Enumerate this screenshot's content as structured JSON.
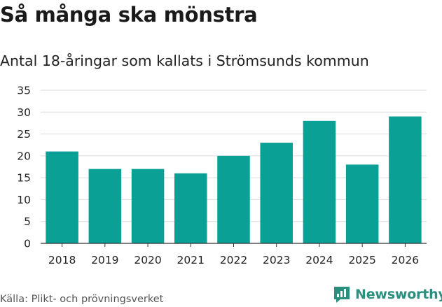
{
  "header": {
    "title": "Så många ska mönstra",
    "subtitle": "Antal 18-åringar som kallats i Strömsunds kommun"
  },
  "footer": {
    "source": "Källa: Plikt- och prövningsverket",
    "brand": "Newsworthy",
    "brand_icon": "newsworthy-logo-icon"
  },
  "colors": {
    "bar": "#0aa095",
    "grid": "#dcdcdc",
    "axis": "#333333",
    "brand": "#2a8f7f"
  },
  "chart_data": {
    "type": "bar",
    "title": "Så många ska mönstra",
    "subtitle": "Antal 18-åringar som kallats i Strömsunds kommun",
    "xlabel": "",
    "ylabel": "",
    "categories": [
      "2018",
      "2019",
      "2020",
      "2021",
      "2022",
      "2023",
      "2024",
      "2025",
      "2026"
    ],
    "values": [
      21,
      17,
      17,
      16,
      20,
      23,
      28,
      18,
      29
    ],
    "ylim": [
      0,
      35
    ],
    "yticks": [
      0,
      5,
      10,
      15,
      20,
      25,
      30,
      35
    ],
    "grid": true,
    "legend": "none"
  }
}
